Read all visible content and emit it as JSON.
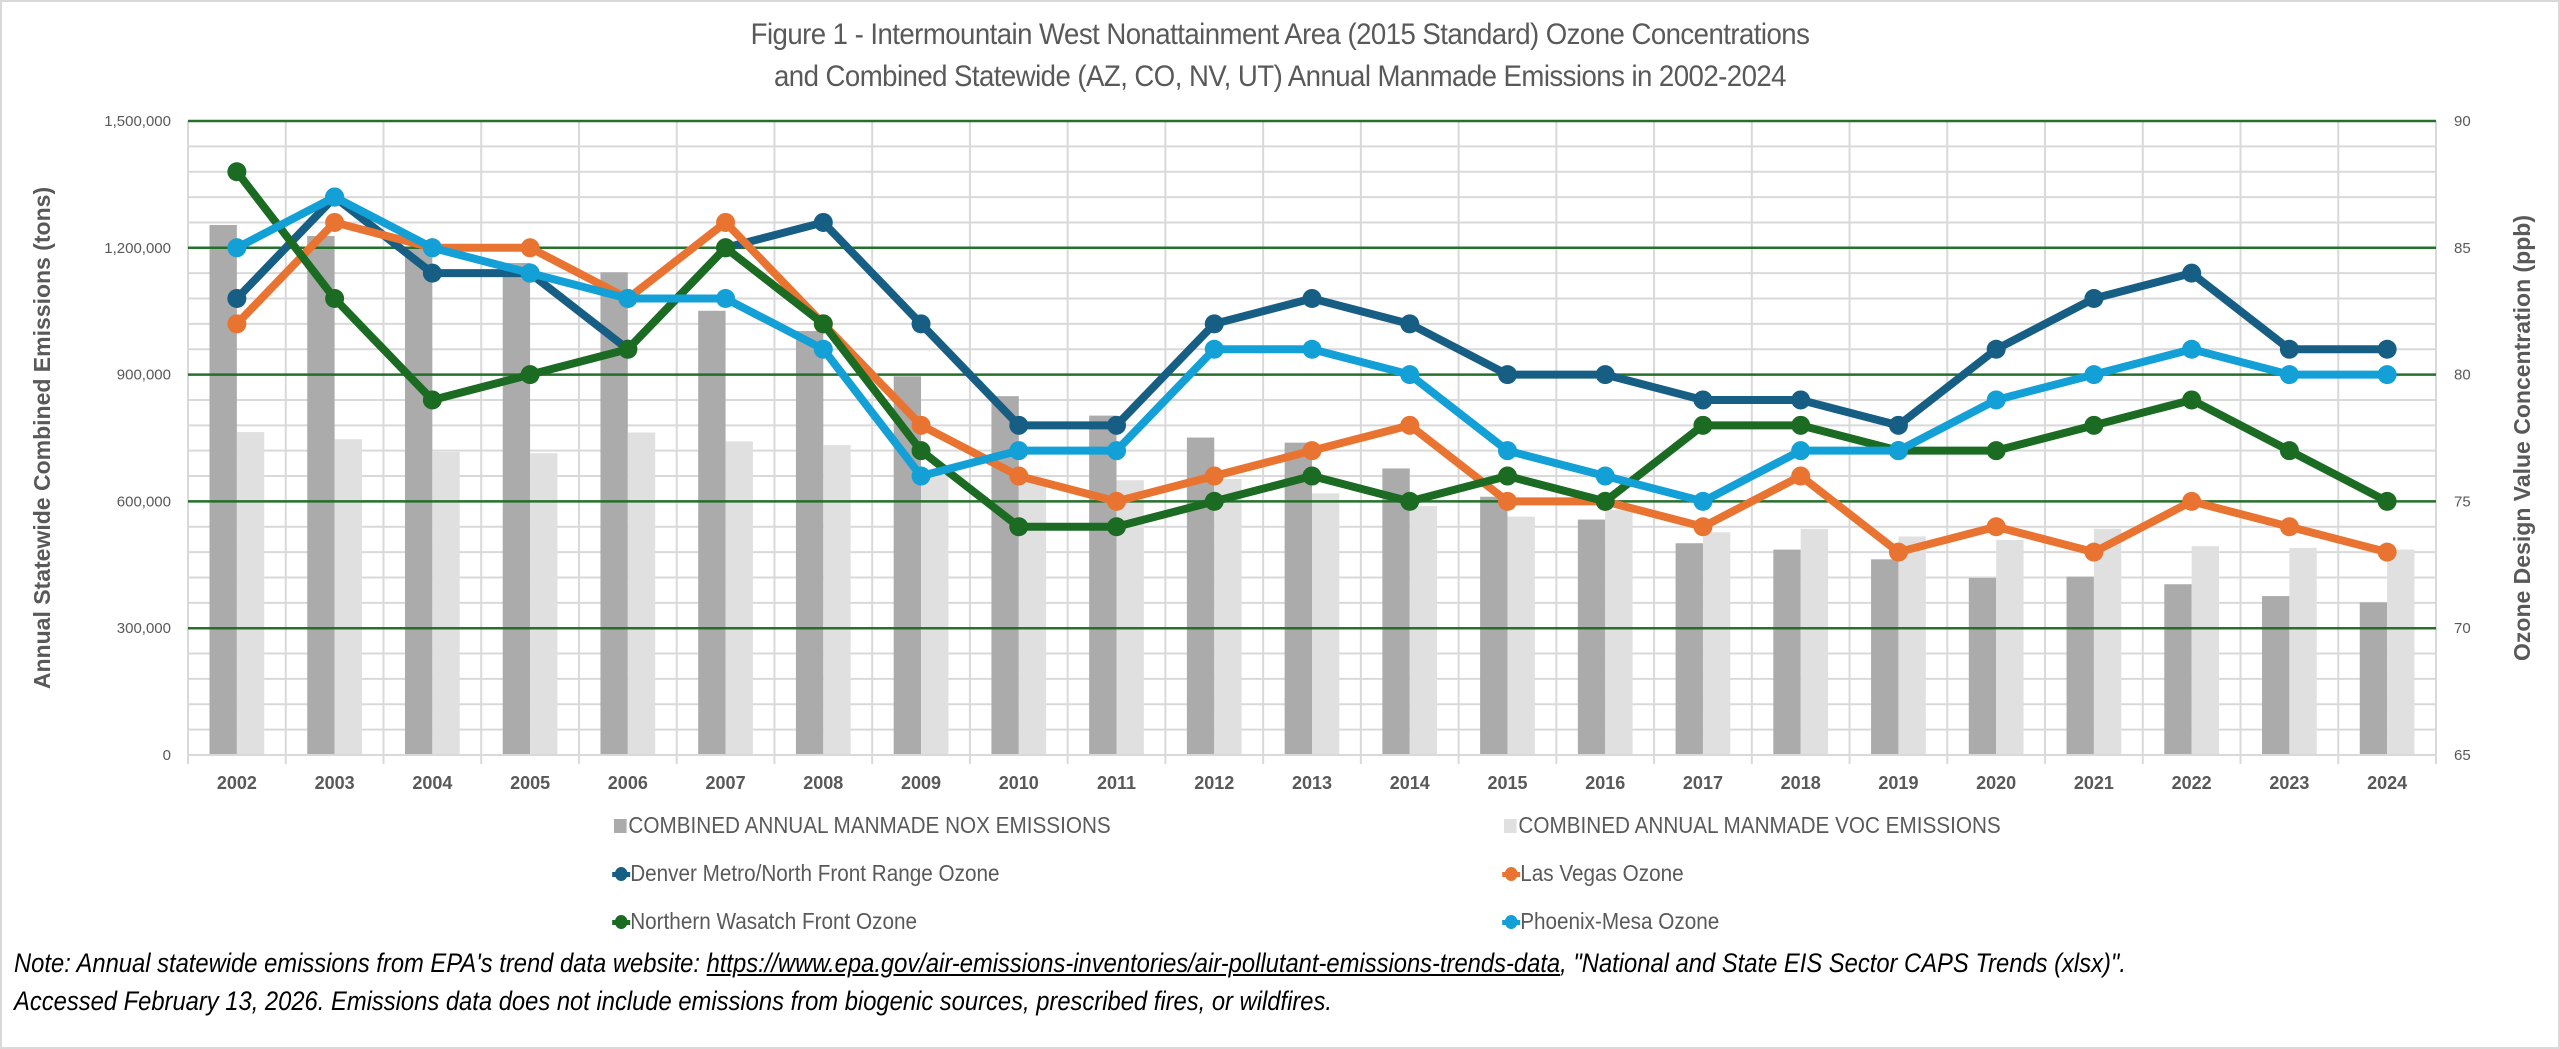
{
  "title": {
    "line1": "Figure 1 - Intermountain West Nonattainment Area (2015 Standard) Ozone Concentrations",
    "line2": "and Combined Statewide (AZ, CO, NV, UT) Annual Manmade Emissions in 2002-2024"
  },
  "note": {
    "prefix": "Note: Annual statewide emissions from EPA's trend data website: ",
    "link_text": "https://www.epa.gov/air-emissions-inventories/air-pollutant-emissions-trends-data",
    "suffix": ", \"National and State EIS Sector CAPS Trends (xlsx)\".",
    "line2": "Accessed February 13, 2026. Emissions data does not include emissions from biogenic sources, prescribed fires, or wildfires."
  },
  "colors": {
    "nox": "#ababab",
    "voc": "#e0e0e0",
    "denver": "#175e85",
    "las_vegas": "#e97432",
    "wasatch": "#1b6b23",
    "phoenix": "#12a0d7",
    "major_grid": "#1b6b23",
    "minor_grid": "#d9d9d9",
    "text": "#595959"
  },
  "chart_data": {
    "type": "bar+line",
    "title": "Figure 1 - Intermountain West Nonattainment Area (2015 Standard) Ozone Concentrations and Combined Statewide (AZ, CO, NV, UT) Annual Manmade Emissions in 2002-2024",
    "categories": [
      "2002",
      "2003",
      "2004",
      "2005",
      "2006",
      "2007",
      "2008",
      "2009",
      "2010",
      "2011",
      "2012",
      "2013",
      "2014",
      "2015",
      "2016",
      "2017",
      "2018",
      "2019",
      "2020",
      "2021",
      "2022",
      "2023",
      "2024"
    ],
    "y_left": {
      "label": "Annual Statewide Combined Emissions (tons)",
      "range": [
        0,
        1500000
      ],
      "ticks": [
        0,
        300000,
        600000,
        900000,
        1200000,
        1500000
      ],
      "tick_labels": [
        "0",
        "300,000",
        "600,000",
        "900,000",
        "1,200,000",
        "1,500,000"
      ],
      "minor_step": 60000
    },
    "y_right": {
      "label": "Ozone Design Value Concentration (ppb)",
      "range": [
        65,
        90
      ],
      "ticks": [
        65,
        70,
        75,
        80,
        85,
        90
      ],
      "tick_labels": [
        "65",
        "70",
        "75",
        "80",
        "85",
        "90"
      ]
    },
    "grid": true,
    "legend_position": "bottom",
    "bar_series": [
      {
        "key": "nox",
        "name": "COMBINED ANNUAL MANMADE NOX EMISSIONS",
        "axis": "left",
        "values": [
          1254000,
          1228000,
          1198000,
          1164000,
          1142000,
          1051000,
          1003000,
          896000,
          849000,
          803000,
          751000,
          739000,
          678000,
          611000,
          557000,
          501000,
          486000,
          463000,
          419000,
          422000,
          404000,
          376000,
          361000
        ]
      },
      {
        "key": "voc",
        "name": "COMBINED ANNUAL MANMADE VOC EMISSIONS",
        "axis": "left",
        "values": [
          764000,
          747000,
          717000,
          714000,
          763000,
          742000,
          733000,
          660000,
          648000,
          650000,
          653000,
          619000,
          589000,
          564000,
          580000,
          527000,
          535000,
          517000,
          509000,
          535000,
          494000,
          490000,
          486000
        ]
      }
    ],
    "line_series": [
      {
        "key": "denver",
        "name": "Denver Metro/North Front Range Ozone",
        "axis": "right",
        "values": [
          83,
          87,
          84,
          84,
          81,
          85,
          86,
          82,
          78,
          78,
          82,
          83,
          82,
          80,
          80,
          79,
          79,
          78,
          81,
          83,
          84,
          81,
          81
        ]
      },
      {
        "key": "las_vegas",
        "name": "Las Vegas Ozone",
        "axis": "right",
        "values": [
          82,
          86,
          85,
          85,
          83,
          86,
          82,
          78,
          76,
          75,
          76,
          77,
          78,
          75,
          75,
          74,
          76,
          73,
          74,
          73,
          75,
          74,
          73
        ]
      },
      {
        "key": "wasatch",
        "name": "Northern Wasatch Front Ozone",
        "axis": "right",
        "values": [
          88,
          83,
          79,
          80,
          81,
          85,
          82,
          77,
          74,
          74,
          75,
          76,
          75,
          76,
          75,
          78,
          78,
          77,
          77,
          78,
          79,
          77,
          75
        ]
      },
      {
        "key": "phoenix",
        "name": "Phoenix-Mesa Ozone",
        "axis": "right",
        "values": [
          85,
          87,
          85,
          84,
          83,
          83,
          81,
          76,
          77,
          77,
          81,
          81,
          80,
          77,
          76,
          75,
          77,
          77,
          79,
          80,
          81,
          80,
          80
        ]
      }
    ]
  }
}
